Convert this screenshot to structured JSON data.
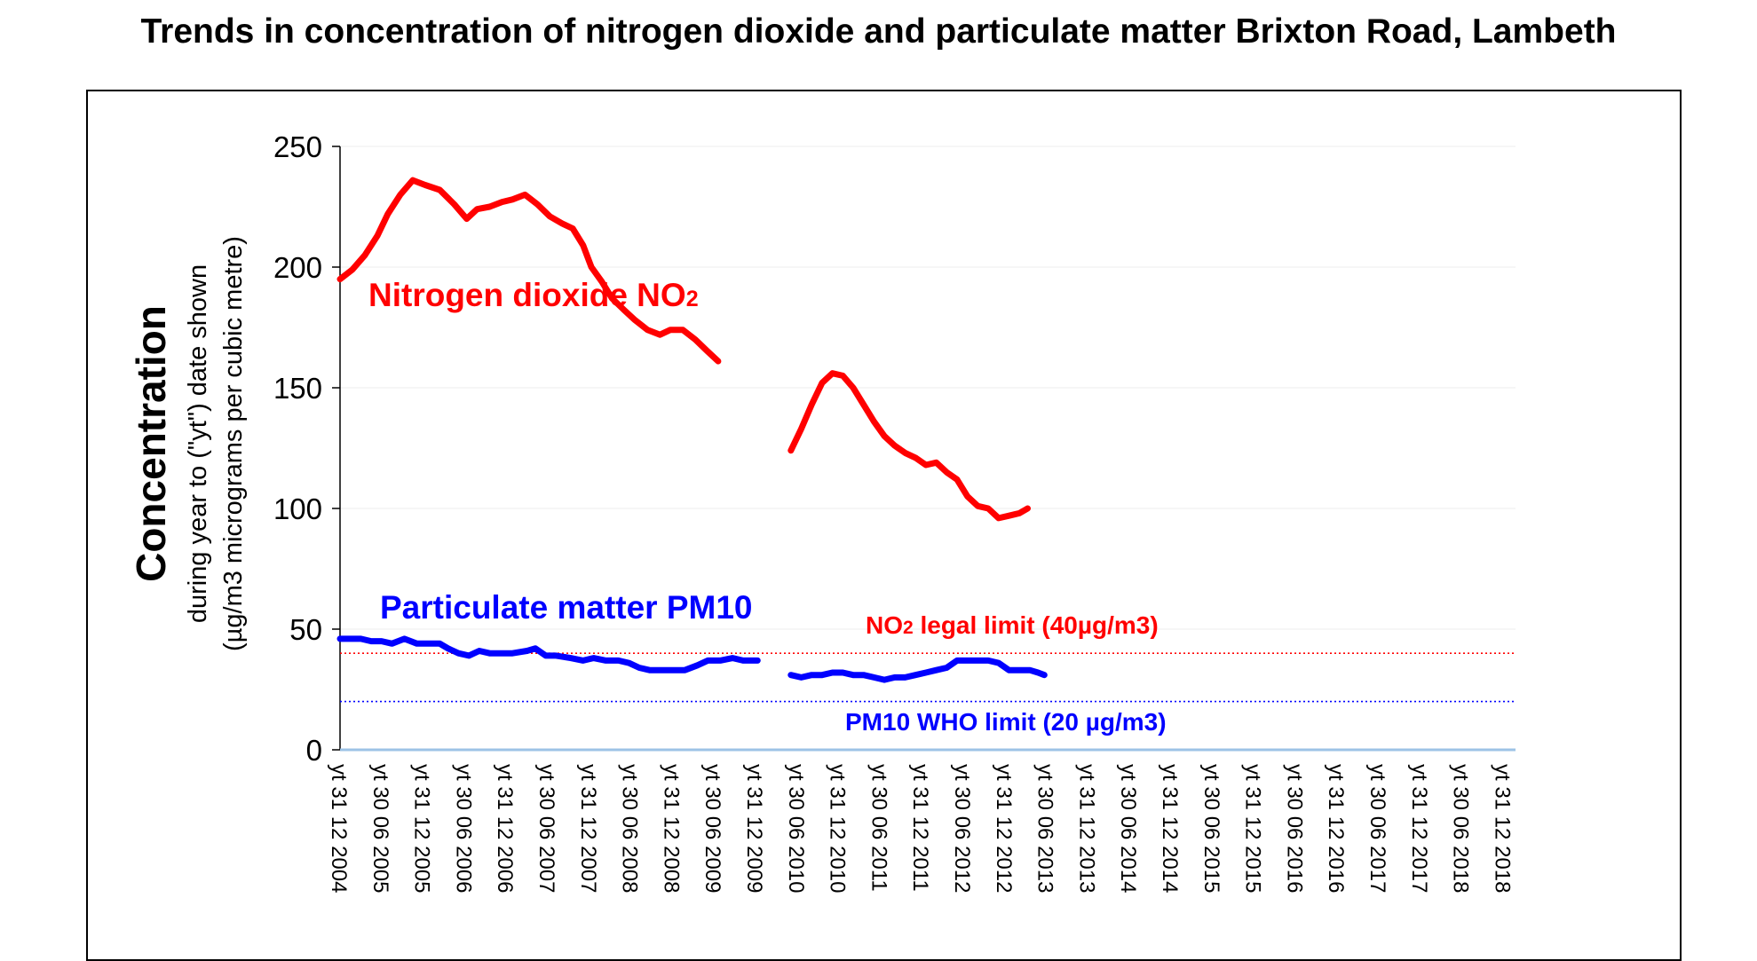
{
  "chart_data": {
    "type": "line",
    "title": "Trends in concentration of nitrogen dioxide and particulate matter Brixton Road, Lambeth",
    "ylabel": "Concentration",
    "ylabel_sub1": "during year to (\"yt\") date shown",
    "ylabel_sub2": "(µg/m3 micrograms per cubic metre)",
    "ylim": [
      0,
      250
    ],
    "yticks": [
      0,
      50,
      100,
      150,
      200,
      250
    ],
    "grid": true,
    "x_categories": [
      "yt 31 12 2004",
      "yt 30 06 2005",
      "yt 31 12 2005",
      "yt 30 06 2006",
      "yt 31 12 2006",
      "yt 30 06 2007",
      "yt 31 12 2007",
      "yt 30 06 2008",
      "yt 31 12 2008",
      "yt 30 06 2009",
      "yt 31 12 2009",
      "yt 30 06 2010",
      "yt 31 12 2010",
      "yt 30 06 2011",
      "yt 31 12 2011",
      "yt 30 06 2012",
      "yt 31 12 2012",
      "yt 30 06 2013",
      "yt 31 12 2013",
      "yt 30 06 2014",
      "yt 31 12 2014",
      "yt 30 06 2015",
      "yt 31 12 2015",
      "yt 30 06 2016",
      "yt 31 12 2016",
      "yt 30 06 2017",
      "yt 31 12 2017",
      "yt 30 06 2018",
      "yt 31 12 2018"
    ],
    "series": [
      {
        "name": "Nitrogen dioxide NO",
        "name_sub": "2",
        "color": "#ff0000",
        "segments": [
          [
            [
              0,
              195
            ],
            [
              0.3,
              199
            ],
            [
              0.6,
              205
            ],
            [
              0.9,
              213
            ],
            [
              1.15,
              222
            ],
            [
              1.45,
              230
            ],
            [
              1.75,
              236
            ],
            [
              2.05,
              234
            ],
            [
              2.4,
              232
            ],
            [
              2.75,
              226
            ],
            [
              3.05,
              220
            ],
            [
              3.3,
              224
            ],
            [
              3.6,
              225
            ],
            [
              3.9,
              227
            ],
            [
              4.15,
              228
            ],
            [
              4.45,
              230
            ],
            [
              4.75,
              226
            ],
            [
              5.05,
              221
            ],
            [
              5.35,
              218
            ],
            [
              5.6,
              216
            ],
            [
              5.85,
              209
            ],
            [
              6.05,
              200
            ],
            [
              6.3,
              194
            ],
            [
              6.55,
              187
            ],
            [
              6.85,
              182
            ],
            [
              7.1,
              178
            ],
            [
              7.4,
              174
            ],
            [
              7.7,
              172
            ],
            [
              7.95,
              174
            ],
            [
              8.25,
              174
            ],
            [
              8.55,
              170
            ],
            [
              8.85,
              165
            ],
            [
              9.1,
              161
            ]
          ],
          [
            [
              10.85,
              124
            ],
            [
              11.1,
              133
            ],
            [
              11.35,
              143
            ],
            [
              11.6,
              152
            ],
            [
              11.85,
              156
            ],
            [
              12.1,
              155
            ],
            [
              12.35,
              150
            ],
            [
              12.6,
              143
            ],
            [
              12.85,
              136
            ],
            [
              13.1,
              130
            ],
            [
              13.35,
              126
            ],
            [
              13.6,
              123
            ],
            [
              13.85,
              121
            ],
            [
              14.1,
              118
            ],
            [
              14.35,
              119
            ],
            [
              14.6,
              115
            ],
            [
              14.85,
              112
            ],
            [
              15.1,
              105
            ],
            [
              15.35,
              101
            ],
            [
              15.6,
              100
            ],
            [
              15.85,
              96
            ],
            [
              16.1,
              97
            ],
            [
              16.35,
              98
            ],
            [
              16.55,
              100
            ]
          ]
        ]
      },
      {
        "name": "Particulate matter PM10",
        "color": "#0000ff",
        "segments": [
          [
            [
              0,
              46
            ],
            [
              0.5,
              46
            ],
            [
              0.75,
              45
            ],
            [
              1.0,
              45
            ],
            [
              1.25,
              44
            ],
            [
              1.55,
              46
            ],
            [
              1.85,
              44
            ],
            [
              2.1,
              44
            ],
            [
              2.4,
              44
            ],
            [
              2.6,
              42
            ],
            [
              2.85,
              40
            ],
            [
              3.1,
              39
            ],
            [
              3.35,
              41
            ],
            [
              3.6,
              40
            ],
            [
              3.85,
              40
            ],
            [
              4.15,
              40
            ],
            [
              4.5,
              41
            ],
            [
              4.7,
              42
            ],
            [
              4.95,
              39
            ],
            [
              5.2,
              39
            ],
            [
              5.55,
              38
            ],
            [
              5.85,
              37
            ],
            [
              6.1,
              38
            ],
            [
              6.4,
              37
            ],
            [
              6.7,
              37
            ],
            [
              6.95,
              36
            ],
            [
              7.2,
              34
            ],
            [
              7.45,
              33
            ],
            [
              7.7,
              33
            ],
            [
              8.0,
              33
            ],
            [
              8.3,
              33
            ],
            [
              8.6,
              35
            ],
            [
              8.85,
              37
            ],
            [
              9.15,
              37
            ],
            [
              9.45,
              38
            ],
            [
              9.7,
              37
            ],
            [
              10.05,
              37
            ]
          ],
          [
            [
              10.85,
              31
            ],
            [
              11.1,
              30
            ],
            [
              11.35,
              31
            ],
            [
              11.6,
              31
            ],
            [
              11.85,
              32
            ],
            [
              12.1,
              32
            ],
            [
              12.35,
              31
            ],
            [
              12.6,
              31
            ],
            [
              12.85,
              30
            ],
            [
              13.1,
              29
            ],
            [
              13.35,
              30
            ],
            [
              13.6,
              30
            ],
            [
              13.85,
              31
            ],
            [
              14.1,
              32
            ],
            [
              14.35,
              33
            ],
            [
              14.6,
              34
            ],
            [
              14.85,
              37
            ],
            [
              15.1,
              37
            ],
            [
              15.35,
              37
            ],
            [
              15.6,
              37
            ],
            [
              15.85,
              36
            ],
            [
              16.1,
              33
            ],
            [
              16.35,
              33
            ],
            [
              16.6,
              33
            ],
            [
              16.8,
              32
            ],
            [
              16.95,
              31
            ]
          ]
        ]
      }
    ],
    "reference_lines": [
      {
        "value": 40,
        "label": "NO",
        "label_sub": "2",
        "label_rest": " legal limit (40µg/m3)",
        "color": "#ff0000",
        "style": "dotted"
      },
      {
        "value": 20,
        "label": "PM10 WHO limit (20 µg/m3)",
        "color": "#0000ff",
        "style": "dotted"
      }
    ]
  }
}
